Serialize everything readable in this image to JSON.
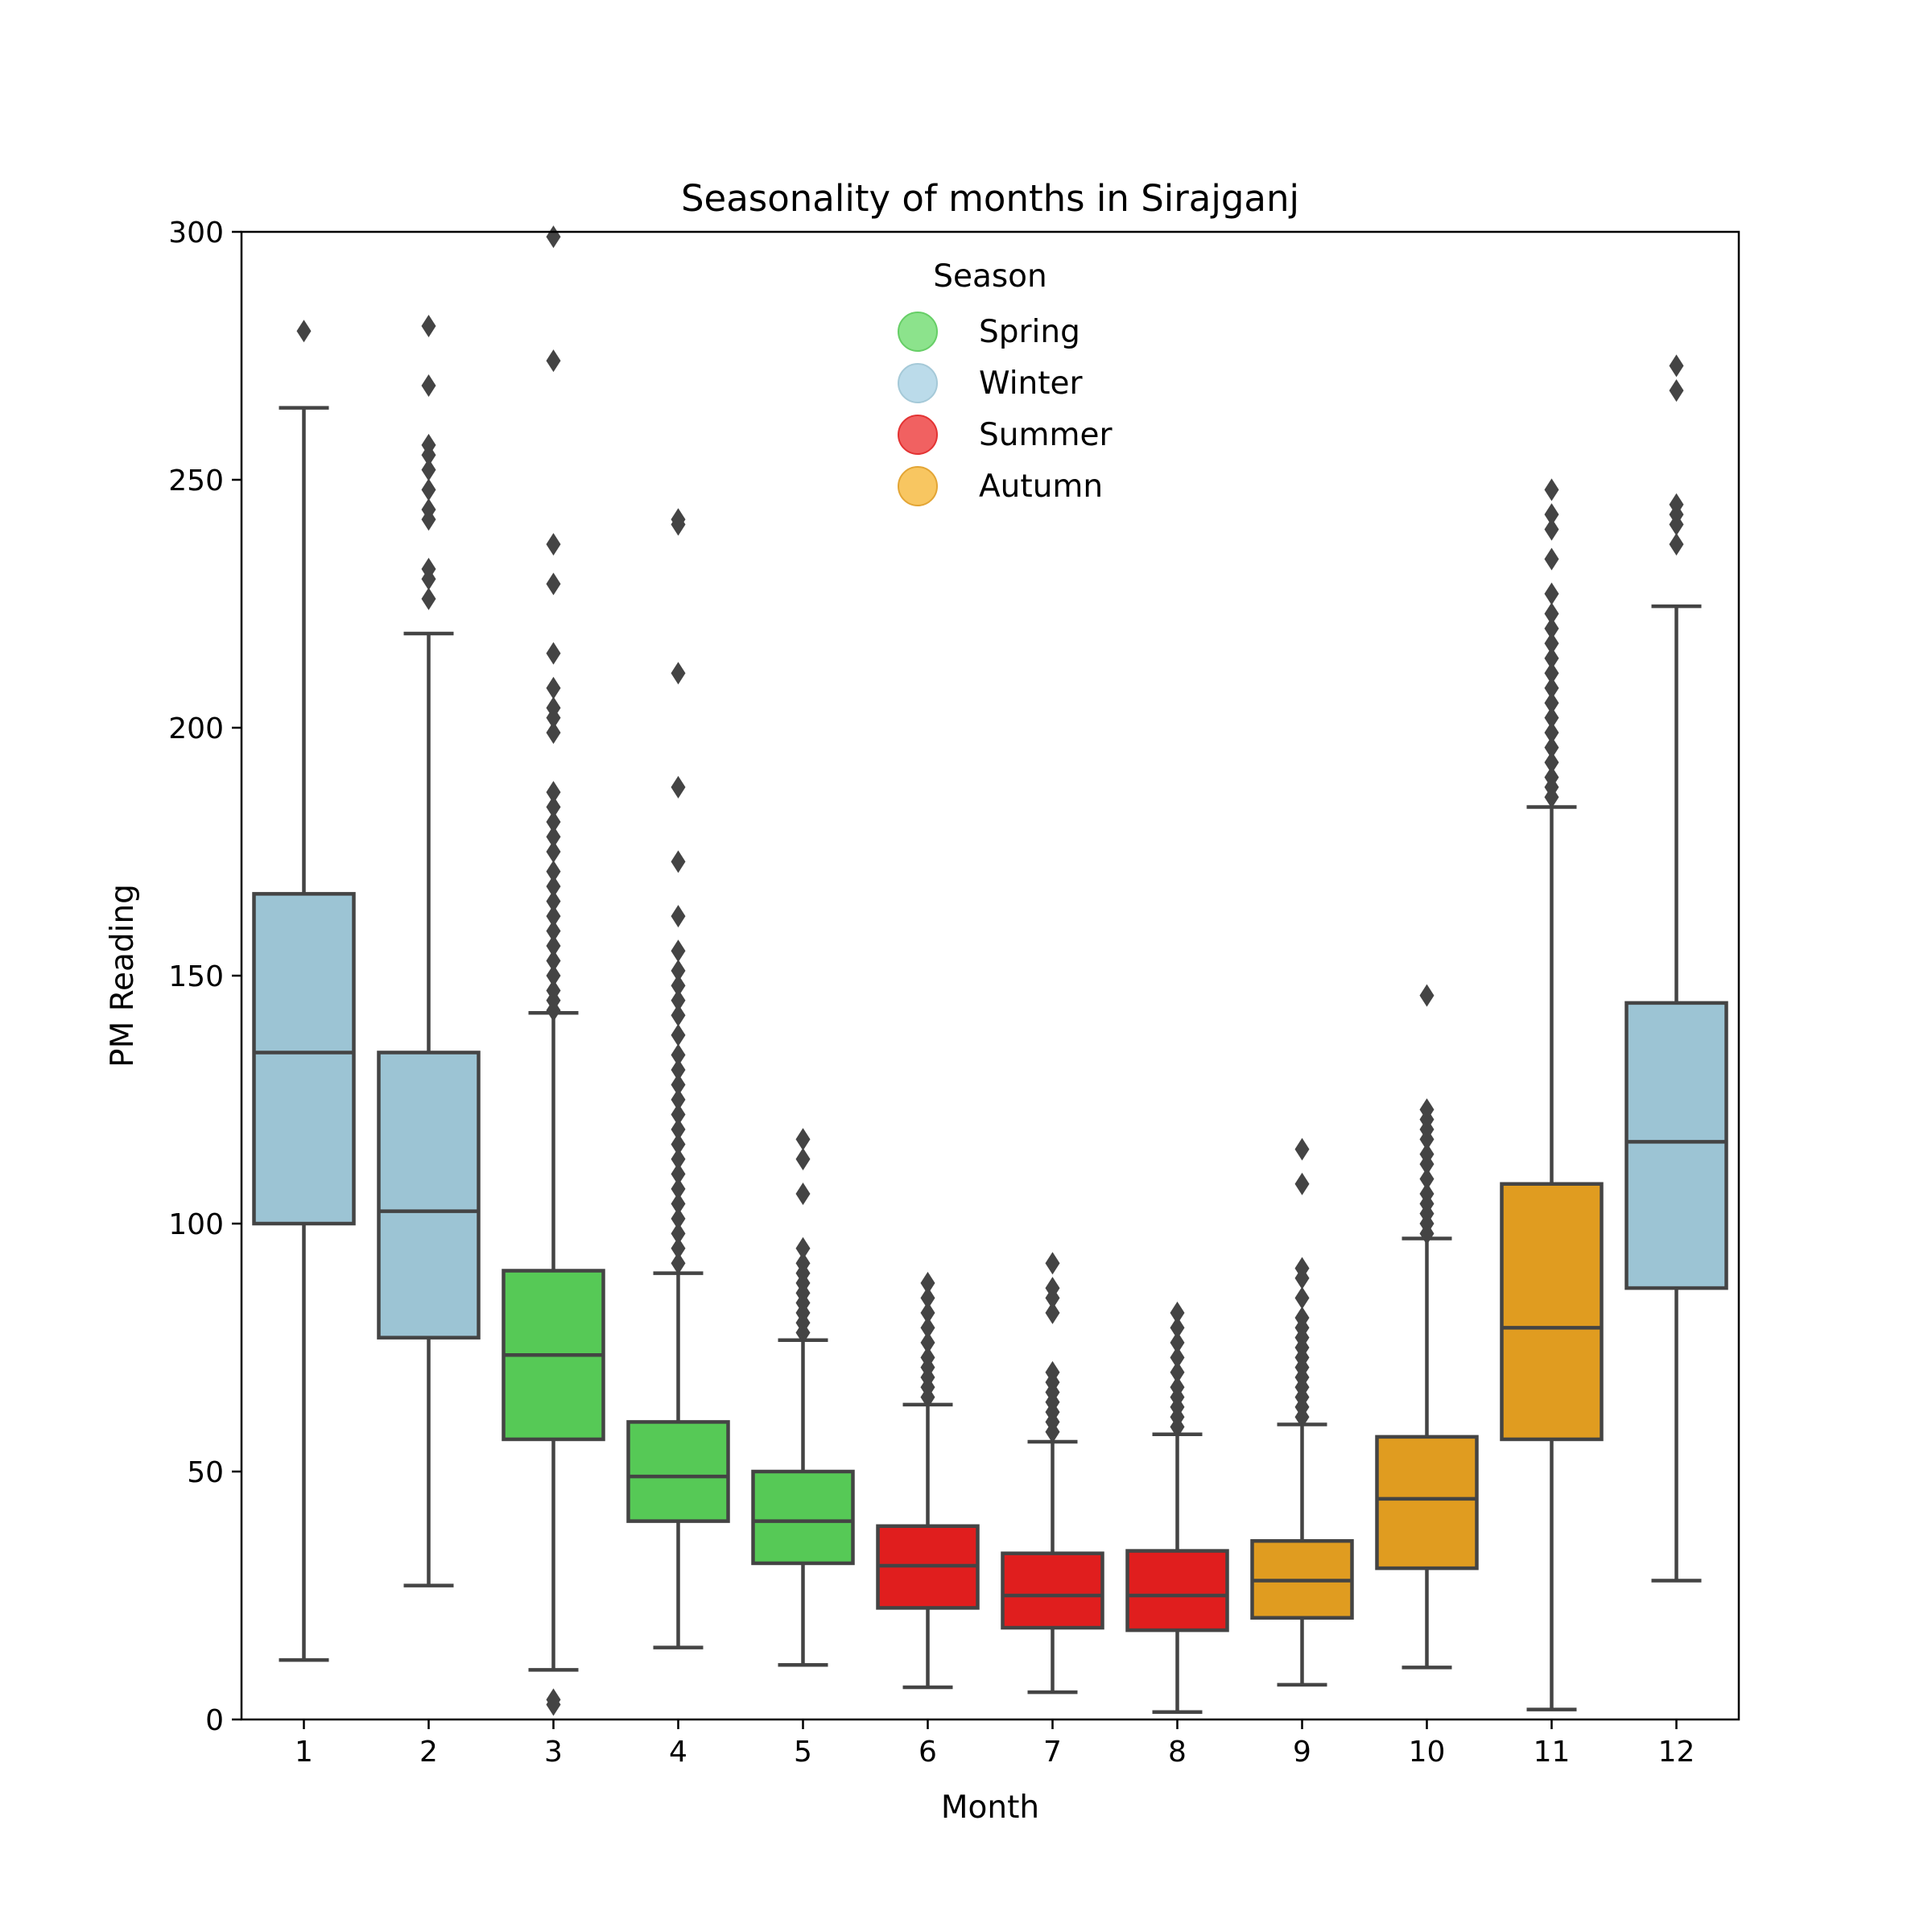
{
  "chart_data": {
    "type": "box",
    "title": "Seasonality of months in Sirajganj",
    "xlabel": "Month",
    "ylabel": "PM Reading",
    "ylim": [
      0,
      300
    ],
    "yticks": [
      0,
      50,
      100,
      150,
      200,
      250,
      300
    ],
    "categories": [
      "1",
      "2",
      "3",
      "4",
      "5",
      "6",
      "7",
      "8",
      "9",
      "10",
      "11",
      "12"
    ],
    "legend": {
      "title": "Season",
      "position": "top-center",
      "items": [
        {
          "label": "Spring",
          "color": "#56c956"
        },
        {
          "label": "Winter",
          "color": "#9cc4d4"
        },
        {
          "label": "Summer",
          "color": "#e01e1e"
        },
        {
          "label": "Autumn",
          "color": "#e09c20"
        }
      ]
    },
    "colors": {
      "Spring": "#56c956",
      "Winter": "#9cc4d4",
      "Summer": "#e01e1e",
      "Autumn": "#e09c20",
      "line": "#444444",
      "legend_Spring": "#80e080",
      "legend_Winter": "#b4d8e8",
      "legend_Summer": "#f05050",
      "legend_Autumn": "#f8c050"
    },
    "boxes": [
      {
        "month": "1",
        "season": "Winter",
        "whislo": 12,
        "q1": 100,
        "med": 134.5,
        "q3": 166.5,
        "whishi": 264.5,
        "fliers": [
          280
        ]
      },
      {
        "month": "2",
        "season": "Winter",
        "whislo": 27,
        "q1": 77,
        "med": 102.5,
        "q3": 134.5,
        "whishi": 219,
        "fliers": [
          226,
          230,
          232,
          242,
          244,
          248,
          252,
          255,
          257,
          269,
          281
        ]
      },
      {
        "month": "3",
        "season": "Spring",
        "whislo": 10,
        "q1": 56.5,
        "med": 73.5,
        "q3": 90.5,
        "whishi": 142.5,
        "fliers": [
          3,
          4,
          143,
          145,
          147,
          150,
          153,
          156,
          159,
          162,
          165,
          168,
          171,
          175,
          178,
          181,
          184,
          187,
          199,
          202,
          204,
          208,
          215,
          229,
          237,
          274,
          299
        ]
      },
      {
        "month": "4",
        "season": "Spring",
        "whislo": 14.5,
        "q1": 40,
        "med": 49,
        "q3": 60,
        "whishi": 90,
        "fliers": [
          92,
          95,
          98,
          101,
          104,
          107,
          110,
          113,
          116,
          119,
          122,
          125,
          128,
          131,
          134,
          138,
          142,
          145,
          148,
          151,
          155,
          162,
          173,
          188,
          211,
          241,
          242
        ]
      },
      {
        "month": "5",
        "season": "Spring",
        "whislo": 11,
        "q1": 31.5,
        "med": 40,
        "q3": 50,
        "whishi": 76.5,
        "fliers": [
          78,
          80,
          82,
          84,
          86,
          88,
          90,
          92,
          95,
          106,
          113,
          117
        ]
      },
      {
        "month": "6",
        "season": "Summer",
        "whislo": 6.5,
        "q1": 22.5,
        "med": 31,
        "q3": 39,
        "whishi": 63.5,
        "fliers": [
          65,
          67,
          69,
          71,
          73,
          76,
          79,
          82,
          85,
          88
        ]
      },
      {
        "month": "7",
        "season": "Summer",
        "whislo": 5.5,
        "q1": 18.5,
        "med": 25,
        "q3": 33.5,
        "whishi": 56,
        "fliers": [
          58,
          60,
          62,
          64,
          66,
          68,
          70,
          82,
          85,
          87,
          92
        ]
      },
      {
        "month": "8",
        "season": "Summer",
        "whislo": 1.5,
        "q1": 18,
        "med": 25,
        "q3": 34,
        "whishi": 57.5,
        "fliers": [
          59,
          61,
          63,
          65,
          67,
          70,
          73,
          76,
          79,
          82
        ]
      },
      {
        "month": "9",
        "season": "Autumn",
        "whislo": 7,
        "q1": 20.5,
        "med": 28,
        "q3": 36,
        "whishi": 59.5,
        "fliers": [
          61,
          63,
          65,
          67,
          69,
          71,
          73,
          75,
          77,
          79,
          81,
          85,
          89,
          91,
          108,
          115
        ]
      },
      {
        "month": "10",
        "season": "Autumn",
        "whislo": 10.5,
        "q1": 30.5,
        "med": 44.5,
        "q3": 57,
        "whishi": 97,
        "fliers": [
          98,
          100,
          102,
          104,
          106,
          109,
          112,
          114,
          117,
          119,
          121,
          123,
          146
        ]
      },
      {
        "month": "11",
        "season": "Autumn",
        "whislo": 2,
        "q1": 56.5,
        "med": 79,
        "q3": 108,
        "whishi": 184,
        "fliers": [
          186,
          188,
          190,
          193,
          196,
          199,
          202,
          205,
          208,
          211,
          214,
          217,
          220,
          223,
          227,
          234,
          240,
          243,
          248
        ]
      },
      {
        "month": "12",
        "season": "Winter",
        "whislo": 28,
        "q1": 87,
        "med": 116.5,
        "q3": 144.5,
        "whishi": 224.5,
        "fliers": [
          237,
          241,
          243,
          245,
          268,
          273
        ]
      }
    ]
  }
}
